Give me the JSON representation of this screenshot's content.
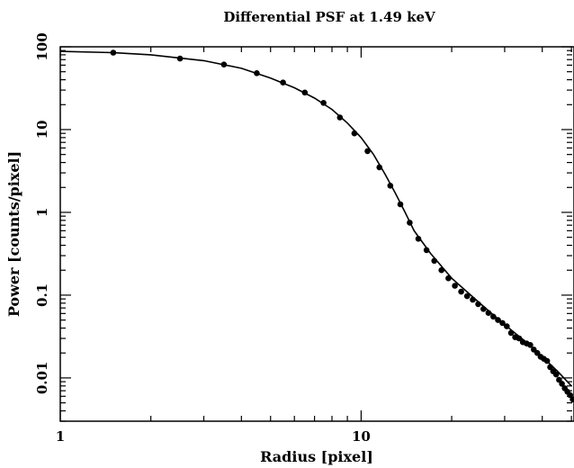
{
  "chart_data": {
    "type": "scatter",
    "title": "Differential PSF at 1.49 keV",
    "xlabel": "Radius [pixel]",
    "ylabel": "Power [counts/pixel]",
    "xscale": "log",
    "yscale": "log",
    "xlim": [
      1,
      51
    ],
    "ylim": [
      0.003,
      100
    ],
    "x_tick_labels": [
      "1",
      "10"
    ],
    "y_tick_labels": [
      "100",
      "10",
      "1",
      "0.1",
      "0.01"
    ],
    "grid": false,
    "legend": "none",
    "colors": {
      "data": "#000000",
      "model": "#000000",
      "axes": "#000000"
    },
    "series": [
      {
        "style": "points",
        "x": [
          1.5,
          2.5,
          3.5,
          4.5,
          5.5,
          6.5,
          7.5,
          8.5,
          9.5,
          10.5,
          11.5,
          12.5,
          13.5,
          14.5,
          15.5,
          16.5,
          17.5,
          18.5,
          19.5,
          20.5,
          21.5,
          22.5,
          23.5,
          24.5,
          25.5,
          26.5,
          27.5,
          28.5,
          29.5,
          30.5,
          31.5,
          32.5,
          33.5,
          34.5,
          35.5,
          36.5,
          37.5,
          38.5,
          39.5,
          40.5,
          41.5,
          42.5,
          43.5,
          44.5,
          45.5,
          46.5,
          47.5,
          48.5,
          49.5,
          50.5
        ],
        "y": [
          85,
          72,
          61,
          48,
          37,
          28,
          21,
          14,
          9,
          5.5,
          3.5,
          2.1,
          1.25,
          0.75,
          0.48,
          0.35,
          0.26,
          0.2,
          0.16,
          0.13,
          0.11,
          0.097,
          0.088,
          0.078,
          0.068,
          0.061,
          0.055,
          0.05,
          0.046,
          0.042,
          0.035,
          0.031,
          0.03,
          0.027,
          0.026,
          0.025,
          0.022,
          0.02,
          0.018,
          0.017,
          0.016,
          0.0135,
          0.012,
          0.011,
          0.0095,
          0.0085,
          0.0075,
          0.0068,
          0.0062,
          0.0055
        ]
      },
      {
        "style": "line",
        "x": [
          1,
          1.5,
          2,
          3,
          4,
          5,
          6,
          7,
          8,
          9,
          10,
          11,
          12,
          13,
          14,
          15,
          17,
          20,
          25,
          30,
          35,
          40,
          45,
          50
        ],
        "y": [
          88,
          85,
          80,
          68,
          55,
          42,
          32,
          24,
          17.5,
          12,
          8,
          5,
          2.9,
          1.7,
          1,
          0.6,
          0.32,
          0.16,
          0.078,
          0.044,
          0.028,
          0.018,
          0.012,
          0.008
        ]
      }
    ]
  }
}
